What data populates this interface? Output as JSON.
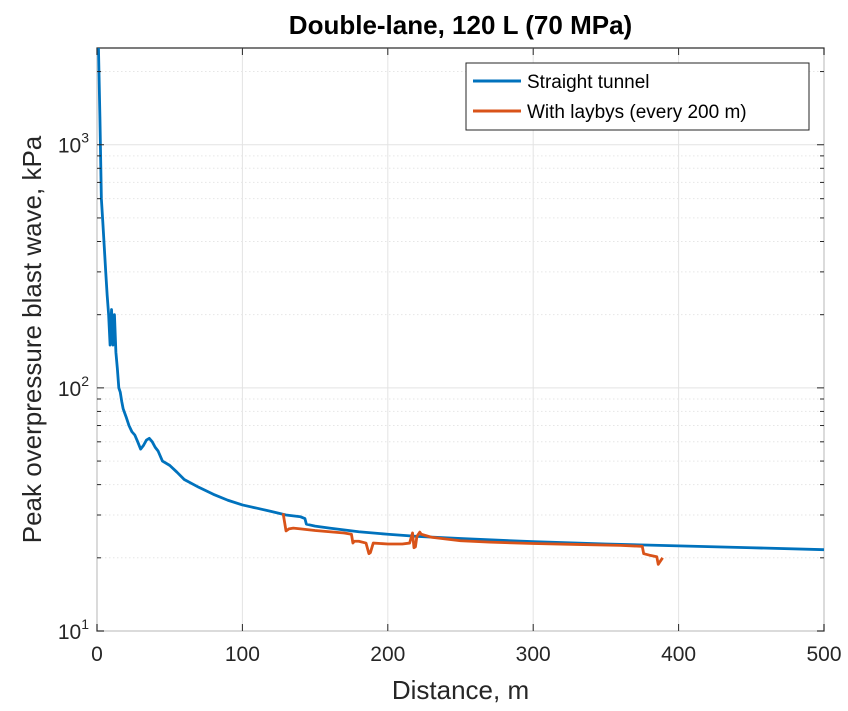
{
  "chart_data": {
    "type": "line",
    "title": "Double-lane, 120 L (70 MPa)",
    "xlabel": "Distance, m",
    "ylabel": "Peak overpressure blast wave, kPa",
    "xlim": [
      0,
      500
    ],
    "ylim": [
      10,
      2500
    ],
    "yscale": "log",
    "grid": true,
    "legend_position": "top-right",
    "x_ticks": [
      0,
      100,
      200,
      300,
      400,
      500
    ],
    "x_tick_labels": [
      "0",
      "100",
      "200",
      "300",
      "400",
      "500"
    ],
    "y_ticks": [
      {
        "value": 10,
        "base": "10",
        "exp": "1"
      },
      {
        "value": 100,
        "base": "10",
        "exp": "2"
      },
      {
        "value": 1000,
        "base": "10",
        "exp": "3"
      }
    ],
    "series": [
      {
        "name": "Straight tunnel",
        "color": "#0072BD",
        "x": [
          1,
          2,
          3,
          4,
          5,
          6,
          7,
          8,
          9,
          10,
          11,
          12,
          13,
          14,
          15,
          16,
          17,
          18,
          20,
          22,
          24,
          26,
          28,
          30,
          32,
          34,
          36,
          38,
          40,
          42,
          45,
          50,
          55,
          60,
          70,
          80,
          90,
          100,
          110,
          120,
          130,
          140,
          143,
          144,
          150,
          160,
          180,
          200,
          220,
          250,
          300,
          350,
          400,
          450,
          500
        ],
        "y": [
          2500,
          1300,
          600,
          480,
          380,
          300,
          240,
          200,
          150,
          210,
          150,
          200,
          140,
          120,
          100,
          96,
          88,
          82,
          76,
          70,
          66,
          64,
          60,
          56,
          58,
          61,
          62,
          60,
          57,
          55,
          50,
          48,
          45,
          42,
          39,
          36.5,
          34.5,
          33,
          32,
          31,
          30,
          29.5,
          29,
          27.5,
          27,
          26.5,
          25.6,
          25.0,
          24.5,
          24.0,
          23.3,
          22.8,
          22.4,
          22.0,
          21.6
        ]
      },
      {
        "name": "With laybys (every 200 m)",
        "color": "#D95319",
        "x": [
          128,
          130,
          132,
          135,
          140,
          150,
          160,
          170,
          175,
          176,
          177,
          180,
          185,
          187,
          188,
          190,
          200,
          210,
          215,
          217,
          218,
          219,
          220,
          222,
          223,
          225,
          230,
          250,
          270,
          300,
          330,
          360,
          375,
          376,
          380,
          385,
          386,
          387,
          389
        ],
        "y": [
          30.5,
          25.8,
          26.3,
          26.5,
          26.3,
          25.9,
          25.6,
          25.3,
          25.0,
          23.0,
          23.4,
          23.4,
          23.0,
          20.8,
          21.0,
          23.0,
          22.8,
          22.8,
          23.0,
          25.3,
          22.0,
          22.2,
          24.5,
          25.5,
          25.0,
          24.8,
          24.3,
          23.5,
          23.2,
          22.9,
          22.7,
          22.5,
          22.3,
          20.8,
          20.5,
          20.2,
          18.8,
          19.2,
          20.0
        ]
      }
    ]
  }
}
